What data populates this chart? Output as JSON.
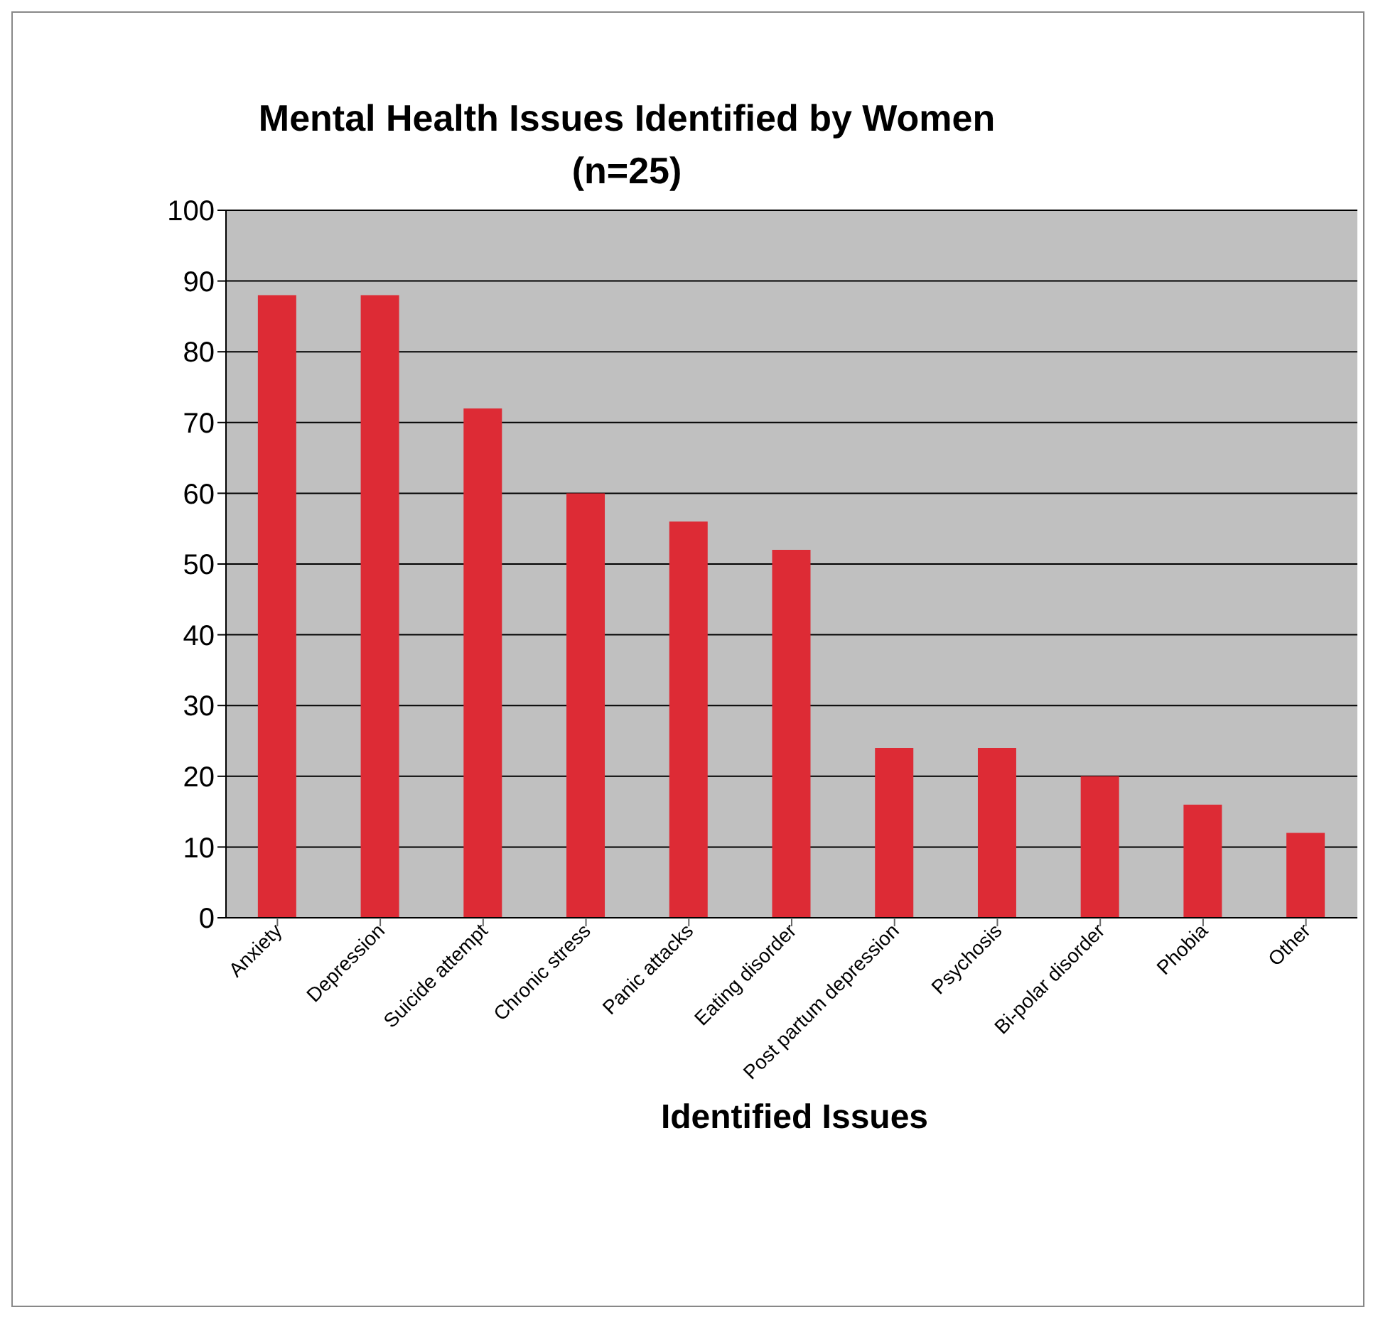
{
  "chart_data": {
    "type": "bar",
    "title": "Mental Health Issues Identified by Women (n=25)",
    "xlabel": "Identified Issues",
    "categories": [
      "Anxiety",
      "Depression",
      "Suicide attempt",
      "Chronic stress",
      "Panic attacks",
      "Eating disorder",
      "Post partum depression",
      "Psychosis",
      "Bi-polar disorder",
      "Phobia",
      "Other"
    ],
    "values": [
      88,
      88,
      72,
      60,
      56,
      52,
      24,
      24,
      20,
      16,
      12
    ],
    "color": "#dd2b35",
    "ylim": [
      0,
      100
    ],
    "yticks": [
      0,
      10,
      20,
      30,
      40,
      50,
      60,
      70,
      80,
      90,
      100
    ],
    "grid": "y"
  }
}
